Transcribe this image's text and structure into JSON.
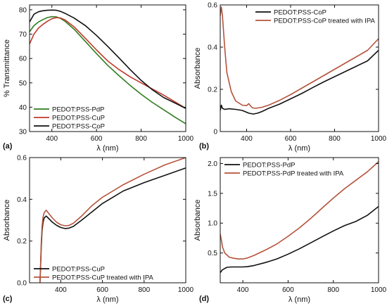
{
  "chart_data": [
    {
      "panel_label": "(a)",
      "type": "line",
      "xlabel": "λ (nm)",
      "ylabel": "% Transmittance",
      "xlim": [
        300,
        1000
      ],
      "ylim": [
        30,
        82
      ],
      "xticks": [
        400,
        600,
        800,
        1000
      ],
      "yticks": [
        30,
        40,
        50,
        60,
        70,
        80
      ],
      "grid": false,
      "legend_position": "bottom-left",
      "series": [
        {
          "name": "PEDOT:PSS-PdP",
          "color": "#2e7d1e",
          "x": [
            300,
            320,
            340,
            360,
            380,
            400,
            420,
            440,
            460,
            500,
            550,
            600,
            650,
            700,
            750,
            800,
            850,
            900,
            950,
            1000
          ],
          "y": [
            71,
            73.5,
            75,
            76,
            76.8,
            77.2,
            77.1,
            76.4,
            75.2,
            72,
            67,
            62,
            57.2,
            53,
            49,
            45.3,
            42,
            39,
            36,
            33.2
          ]
        },
        {
          "name": "PEDOT:PSS-CuP",
          "color": "#c0392b",
          "x": [
            300,
            320,
            340,
            360,
            380,
            400,
            420,
            440,
            460,
            500,
            550,
            600,
            650,
            700,
            750,
            800,
            850,
            900,
            950,
            1000
          ],
          "y": [
            66,
            70,
            72.5,
            74,
            75.3,
            76.3,
            76.8,
            76.6,
            75.8,
            73,
            68.3,
            63.5,
            59,
            55.5,
            52.5,
            50,
            47.5,
            45,
            42.3,
            39.5
          ]
        },
        {
          "name": "PEDOT:PSS-CoP",
          "color": "#111111",
          "x": [
            300,
            320,
            340,
            360,
            380,
            400,
            420,
            440,
            460,
            500,
            550,
            600,
            650,
            700,
            750,
            800,
            850,
            900,
            950,
            1000
          ],
          "y": [
            75,
            78.2,
            79.2,
            79.6,
            79.8,
            79.9,
            79.8,
            79.3,
            78.5,
            76.6,
            73.5,
            69.5,
            65,
            60.3,
            55.5,
            51,
            47.2,
            44,
            41.8,
            39.5
          ]
        }
      ]
    },
    {
      "panel_label": "(b)",
      "type": "line",
      "xlabel": "λ (nm)",
      "ylabel": "Absorbance",
      "xlim": [
        280,
        1000
      ],
      "ylim": [
        0,
        0.6
      ],
      "xticks": [
        400,
        600,
        800,
        1000
      ],
      "yticks": [
        0,
        0.2,
        0.4,
        0.6
      ],
      "ytick_labels": [
        "0",
        "0.2",
        "0.4",
        "0.6"
      ],
      "grid": false,
      "legend_position": "top-right",
      "series": [
        {
          "name": "PEDOT:PSS-CoP",
          "color": "#111111",
          "x": [
            280,
            285,
            290,
            300,
            320,
            350,
            380,
            410,
            430,
            450,
            470,
            500,
            550,
            600,
            650,
            700,
            750,
            800,
            850,
            900,
            950,
            1000
          ],
          "y": [
            0.1,
            0.125,
            0.11,
            0.105,
            0.108,
            0.105,
            0.1,
            0.087,
            0.083,
            0.087,
            0.095,
            0.11,
            0.13,
            0.155,
            0.18,
            0.208,
            0.235,
            0.26,
            0.285,
            0.31,
            0.335,
            0.385
          ]
        },
        {
          "name": "PEDOT:PSS-CoP treated with IPA",
          "color": "#b5533c",
          "x": [
            280,
            285,
            290,
            300,
            310,
            330,
            350,
            380,
            400,
            410,
            425,
            440,
            470,
            500,
            550,
            600,
            650,
            700,
            750,
            800,
            850,
            900,
            950,
            1000
          ],
          "y": [
            0.55,
            0.59,
            0.55,
            0.4,
            0.28,
            0.19,
            0.145,
            0.125,
            0.123,
            0.132,
            0.113,
            0.11,
            0.115,
            0.125,
            0.148,
            0.175,
            0.205,
            0.235,
            0.265,
            0.295,
            0.325,
            0.355,
            0.385,
            0.44
          ]
        }
      ]
    },
    {
      "panel_label": "(c)",
      "type": "line",
      "xlabel": "λ (nm)",
      "ylabel": "Absorbance",
      "xlim": [
        250,
        1000
      ],
      "ylim": [
        0,
        0.6
      ],
      "xticks": [
        400,
        600,
        800,
        1000
      ],
      "yticks": [
        0,
        0.2,
        0.4,
        0.6
      ],
      "ytick_labels": [
        "0.0",
        "0.2",
        "0.4",
        "0.6"
      ],
      "grid": false,
      "legend_position": "bottom-left",
      "series": [
        {
          "name": "PEDOT:PSS-CuP",
          "color": "#111111",
          "x": [
            300,
            303,
            306,
            310,
            315,
            320,
            330,
            340,
            360,
            380,
            400,
            420,
            440,
            460,
            500,
            550,
            600,
            650,
            700,
            800,
            900,
            1000
          ],
          "y": [
            0,
            0.08,
            0.17,
            0.25,
            0.29,
            0.31,
            0.32,
            0.31,
            0.29,
            0.275,
            0.265,
            0.26,
            0.262,
            0.27,
            0.3,
            0.34,
            0.38,
            0.41,
            0.44,
            0.48,
            0.515,
            0.55
          ]
        },
        {
          "name": "PEDOT:PSS-CuP treated with IPA",
          "color": "#b5533c",
          "x": [
            300,
            303,
            306,
            310,
            315,
            320,
            330,
            340,
            360,
            380,
            400,
            420,
            440,
            460,
            500,
            550,
            600,
            650,
            700,
            800,
            900,
            1000
          ],
          "y": [
            0,
            0.09,
            0.19,
            0.27,
            0.315,
            0.335,
            0.348,
            0.335,
            0.31,
            0.29,
            0.278,
            0.273,
            0.275,
            0.285,
            0.32,
            0.37,
            0.41,
            0.44,
            0.47,
            0.52,
            0.565,
            0.6
          ]
        }
      ]
    },
    {
      "panel_label": "(d)",
      "type": "line",
      "xlabel": "λ (nm)",
      "ylabel": "Absorbance",
      "xlim": [
        300,
        1000
      ],
      "ylim": [
        0,
        2.1
      ],
      "xticks": [
        400,
        600,
        800,
        1000
      ],
      "yticks": [
        0.5,
        1.0,
        1.5,
        2.0
      ],
      "ytick_labels": [
        "0.5",
        "1.0",
        "1.5",
        "2.0"
      ],
      "grid": false,
      "legend_position": "top-left",
      "series": [
        {
          "name": "PEDOT:PSS-PdP",
          "color": "#111111",
          "x": [
            300,
            310,
            330,
            350,
            380,
            400,
            420,
            450,
            500,
            550,
            600,
            650,
            700,
            750,
            800,
            850,
            900,
            950,
            1000
          ],
          "y": [
            0.17,
            0.22,
            0.26,
            0.265,
            0.265,
            0.265,
            0.27,
            0.29,
            0.34,
            0.4,
            0.48,
            0.57,
            0.67,
            0.77,
            0.87,
            0.96,
            1.03,
            1.13,
            1.28
          ]
        },
        {
          "name": "PEDOT:PSS-PdP treated with IPA",
          "color": "#b5533c",
          "x": [
            300,
            305,
            310,
            320,
            340,
            360,
            380,
            400,
            420,
            450,
            500,
            550,
            600,
            650,
            700,
            750,
            800,
            850,
            900,
            950,
            1000
          ],
          "y": [
            0.82,
            0.72,
            0.6,
            0.5,
            0.43,
            0.41,
            0.4,
            0.4,
            0.415,
            0.46,
            0.55,
            0.65,
            0.78,
            0.92,
            1.08,
            1.25,
            1.42,
            1.58,
            1.72,
            1.86,
            2.03
          ]
        }
      ]
    }
  ]
}
